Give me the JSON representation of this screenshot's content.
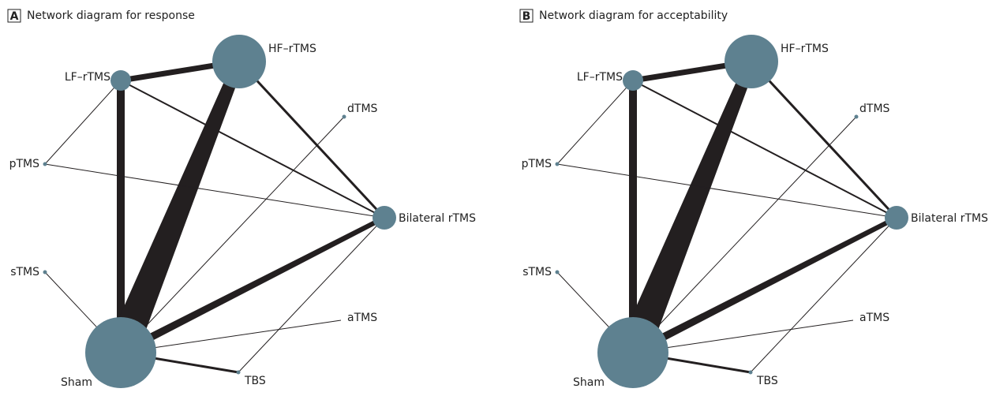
{
  "panels": [
    {
      "letter": "A",
      "title": "Network diagram for response",
      "nodes": [
        {
          "label": "LF–rTMS"
        },
        {
          "label": "HF–rTMS"
        },
        {
          "label": "dTMS"
        },
        {
          "label": "pTMS"
        },
        {
          "label": "Bilateral rTMS"
        },
        {
          "label": "sTMS"
        },
        {
          "label": "aTMS"
        },
        {
          "label": "TBS"
        },
        {
          "label": "Sham"
        }
      ]
    },
    {
      "letter": "B",
      "title": "Network diagram for acceptability",
      "nodes": [
        {
          "label": "LF–rTMS"
        },
        {
          "label": "HF–rTMS"
        },
        {
          "label": "dTMS"
        },
        {
          "label": "pTMS"
        },
        {
          "label": "Bilateral rTMS"
        },
        {
          "label": "sTMS"
        },
        {
          "label": "aTMS"
        },
        {
          "label": "TBS"
        },
        {
          "label": "Sham"
        }
      ]
    }
  ]
}
